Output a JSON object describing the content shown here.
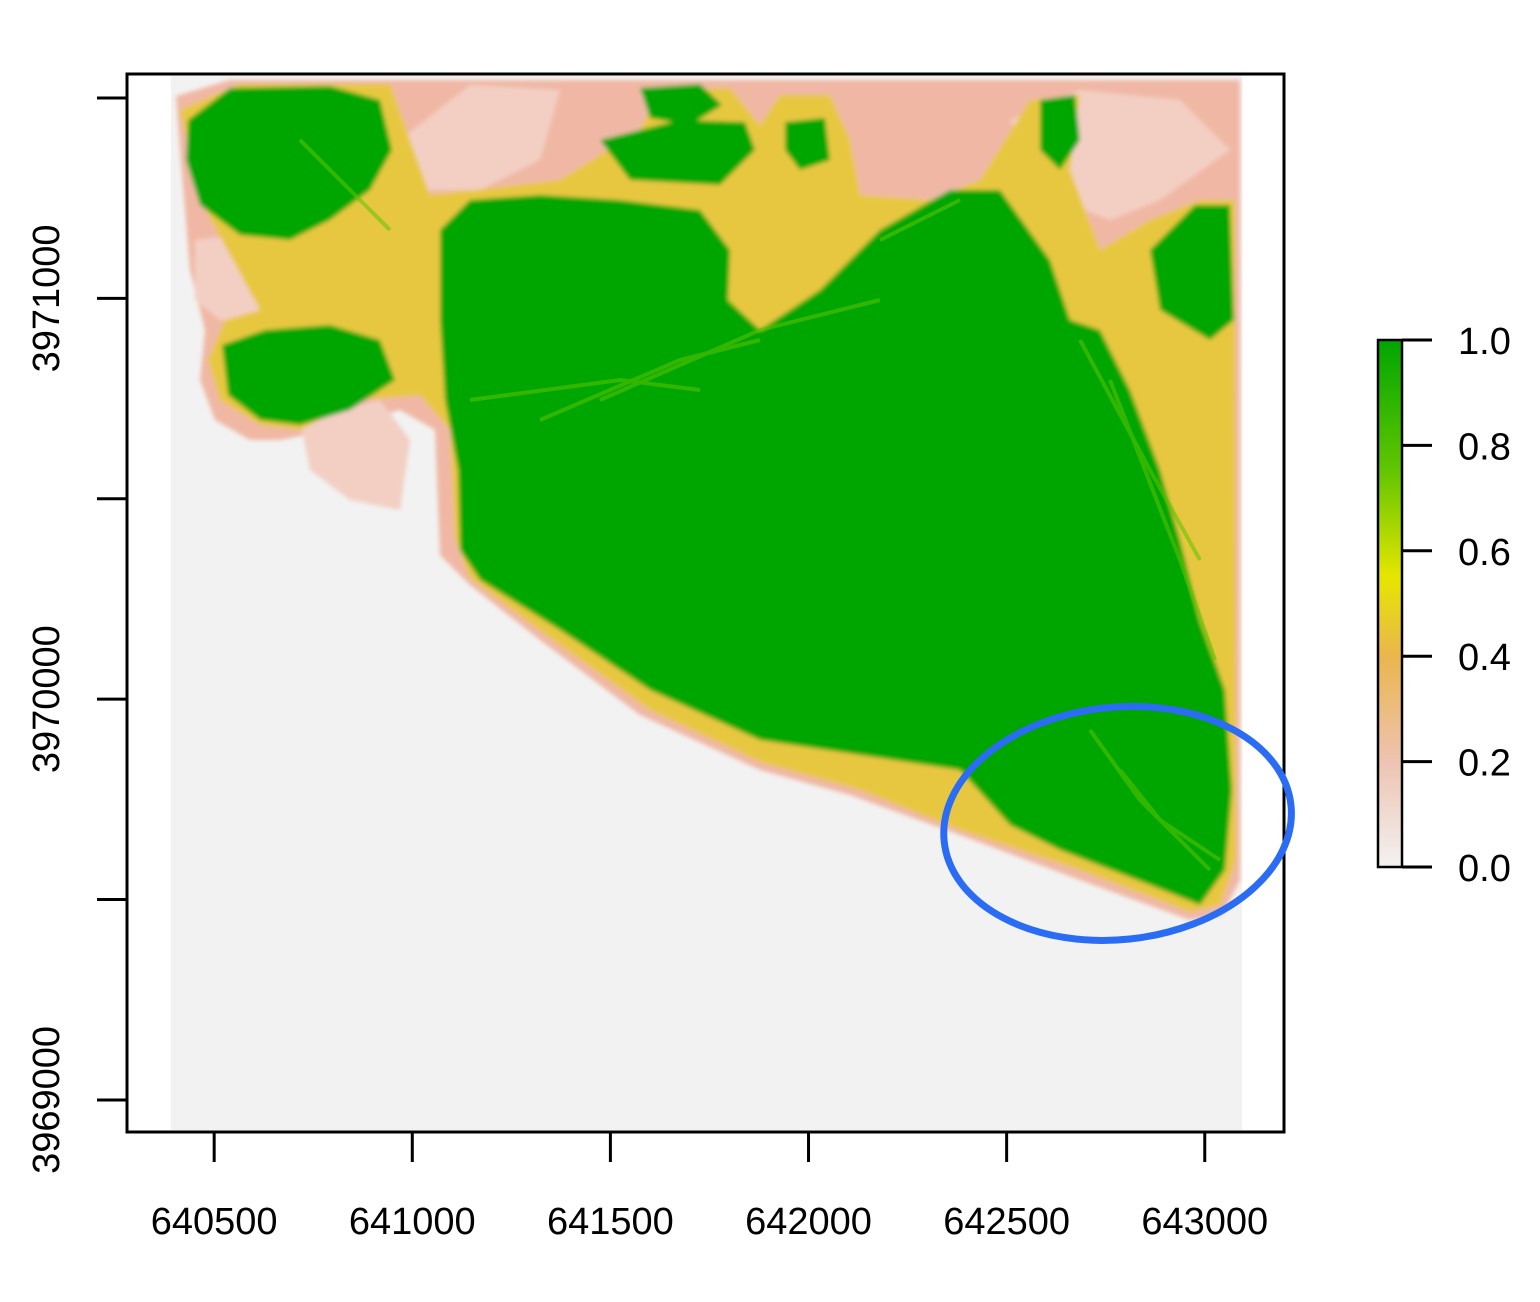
{
  "raster": {
    "x_axis": {
      "range": [
        640280,
        643200
      ],
      "ticks": [
        640500,
        641000,
        641500,
        642000,
        642500,
        643000
      ],
      "tick_labels": [
        "640500",
        "641000",
        "641500",
        "642000",
        "642500",
        "643000"
      ]
    },
    "y_axis": {
      "range": [
        3968920,
        3971560
      ],
      "ticks": [
        3969000,
        3969500,
        3970000,
        3970500,
        3971000,
        3971500
      ],
      "tick_labels": [
        "3969000",
        "",
        "3970000",
        "",
        "3971000",
        ""
      ]
    },
    "extent": {
      "xmin": 640390,
      "xmax": 643100,
      "ymin": 3968920,
      "ymax": 3971560
    },
    "nodata_color": "#f2f2f2",
    "border_color": "#000000"
  },
  "legend": {
    "range": [
      0.0,
      1.0
    ],
    "ticks": [
      "1.0",
      "0.8",
      "0.6",
      "0.4",
      "0.2",
      "0.0"
    ],
    "colors": [
      "#00a600",
      "#63c600",
      "#e6e600",
      "#eab64e",
      "#eec3b1",
      "#f2f2f2"
    ]
  },
  "annotation": {
    "shape": "ellipse",
    "color": "#2a6df4",
    "center": [
      642780,
      3969690
    ],
    "radius_x": 440,
    "radius_y": 290,
    "rotation_deg": -6
  },
  "colors": {
    "high": "#00a600",
    "mid_high": "#5cc400",
    "mid": "#e0e000",
    "low_mid": "#eeb55a",
    "low": "#f0b8a4",
    "zero": "#f2f2f2"
  }
}
